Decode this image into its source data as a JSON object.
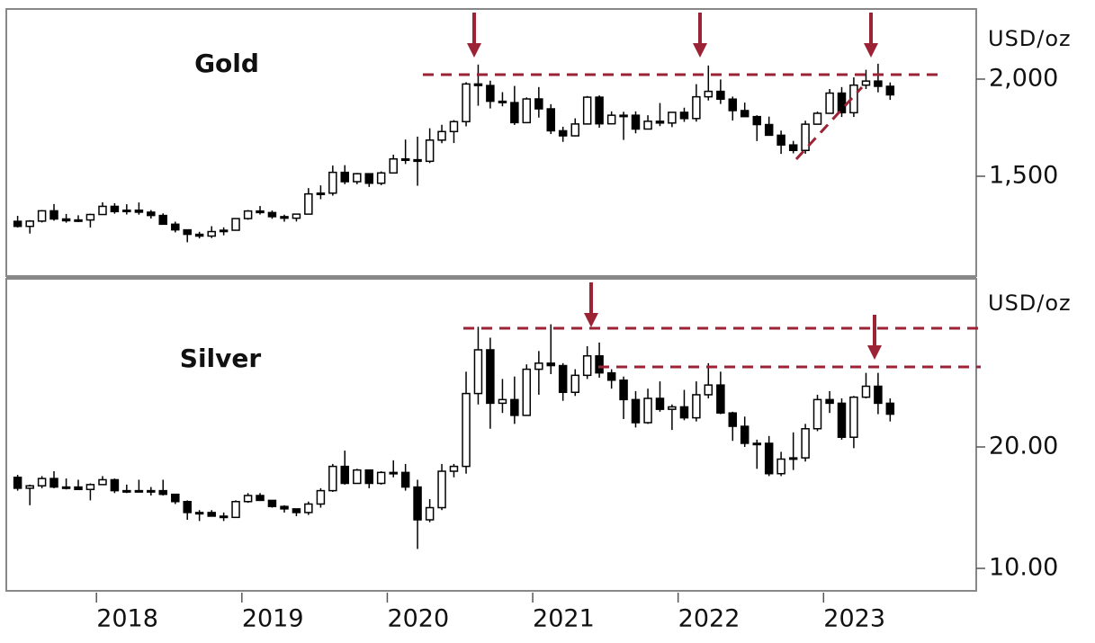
{
  "chart_data": {
    "type": "candlestick",
    "up_color": "#ffffff",
    "down_color": "#000000",
    "xlim": [
      2017.38,
      2024.05
    ],
    "xticks": [
      2018,
      2019,
      2020,
      2021,
      2022,
      2023
    ],
    "x": [
      2017.458,
      2017.542,
      2017.625,
      2017.708,
      2017.792,
      2017.875,
      2017.958,
      2018.042,
      2018.125,
      2018.208,
      2018.292,
      2018.375,
      2018.458,
      2018.542,
      2018.625,
      2018.708,
      2018.792,
      2018.875,
      2018.958,
      2019.042,
      2019.125,
      2019.208,
      2019.292,
      2019.375,
      2019.458,
      2019.542,
      2019.625,
      2019.708,
      2019.792,
      2019.875,
      2019.958,
      2020.042,
      2020.125,
      2020.208,
      2020.292,
      2020.375,
      2020.458,
      2020.542,
      2020.625,
      2020.708,
      2020.792,
      2020.875,
      2020.958,
      2021.042,
      2021.125,
      2021.208,
      2021.292,
      2021.375,
      2021.458,
      2021.542,
      2021.625,
      2021.708,
      2021.792,
      2021.875,
      2021.958,
      2022.042,
      2022.125,
      2022.208,
      2022.292,
      2022.375,
      2022.458,
      2022.542,
      2022.625,
      2022.708,
      2022.792,
      2022.875,
      2022.958,
      2023.042,
      2023.125,
      2023.208,
      2023.292,
      2023.375,
      2023.458
    ],
    "panels": [
      {
        "title": "Gold",
        "y_label": "USD/oz",
        "ylim": [
          986,
          2361
        ],
        "yticks": [
          {
            "value": 1500,
            "label": "1,500"
          },
          {
            "value": 2000,
            "label": "2,000"
          }
        ],
        "open": [
          1268,
          1242,
          1269,
          1322,
          1280,
          1271,
          1275,
          1303,
          1345,
          1318,
          1325,
          1315,
          1298,
          1253,
          1224,
          1201,
          1192,
          1215,
          1222,
          1282,
          1321,
          1313,
          1292,
          1284,
          1305,
          1409,
          1413,
          1520,
          1472,
          1513,
          1464,
          1517,
          1589,
          1585,
          1577,
          1686,
          1730,
          1781,
          1975,
          1967,
          1886,
          1879,
          1776,
          1898,
          1847,
          1734,
          1708,
          1769,
          1907,
          1770,
          1814,
          1814,
          1743,
          1783,
          1774,
          1829,
          1797,
          1909,
          1937,
          1897,
          1838,
          1807,
          1766,
          1711,
          1661,
          1633,
          1768,
          1824,
          1928,
          1827,
          1969,
          1990,
          1963
        ],
        "high": [
          1296,
          1274,
          1326,
          1357,
          1306,
          1299,
          1307,
          1366,
          1361,
          1356,
          1365,
          1326,
          1309,
          1266,
          1222,
          1214,
          1243,
          1237,
          1284,
          1326,
          1347,
          1324,
          1302,
          1306,
          1439,
          1453,
          1555,
          1557,
          1517,
          1516,
          1525,
          1611,
          1689,
          1704,
          1747,
          1765,
          1789,
          1984,
          2075,
          1992,
          1933,
          1965,
          1906,
          1959,
          1871,
          1755,
          1798,
          1913,
          1916,
          1834,
          1832,
          1834,
          1814,
          1877,
          1831,
          1853,
          1974,
          2070,
          1998,
          1910,
          1879,
          1814,
          1807,
          1735,
          1682,
          1786,
          1833,
          1949,
          1959,
          2009,
          2048,
          2079,
          1983
        ],
        "low": [
          1236,
          1205,
          1262,
          1271,
          1261,
          1264,
          1236,
          1302,
          1307,
          1303,
          1302,
          1282,
          1251,
          1211,
          1160,
          1180,
          1182,
          1196,
          1221,
          1276,
          1303,
          1281,
          1266,
          1267,
          1311,
          1382,
          1400,
          1459,
          1459,
          1445,
          1454,
          1517,
          1563,
          1451,
          1568,
          1670,
          1671,
          1757,
          1863,
          1849,
          1860,
          1764,
          1775,
          1802,
          1717,
          1677,
          1705,
          1766,
          1750,
          1767,
          1687,
          1721,
          1746,
          1758,
          1753,
          1780,
          1781,
          1890,
          1872,
          1787,
          1805,
          1681,
          1709,
          1615,
          1618,
          1616,
          1765,
          1823,
          1805,
          1805,
          1949,
          1932,
          1893
        ],
        "close": [
          1242,
          1269,
          1322,
          1280,
          1271,
          1275,
          1303,
          1345,
          1318,
          1325,
          1315,
          1298,
          1253,
          1224,
          1201,
          1192,
          1215,
          1222,
          1282,
          1321,
          1313,
          1292,
          1284,
          1305,
          1409,
          1413,
          1520,
          1472,
          1513,
          1464,
          1517,
          1589,
          1585,
          1577,
          1686,
          1730,
          1781,
          1975,
          1967,
          1886,
          1879,
          1776,
          1898,
          1847,
          1734,
          1708,
          1769,
          1907,
          1770,
          1814,
          1814,
          1743,
          1783,
          1774,
          1829,
          1797,
          1909,
          1937,
          1897,
          1838,
          1807,
          1766,
          1711,
          1661,
          1633,
          1768,
          1824,
          1928,
          1827,
          1969,
          1990,
          1963,
          1919
        ]
      },
      {
        "title": "Silver",
        "y_label": "USD/oz",
        "ylim": [
          8.15,
          33.85
        ],
        "yticks": [
          {
            "value": 10,
            "label": "10.00"
          },
          {
            "value": 20,
            "label": "20.00"
          }
        ],
        "open": [
          17.5,
          16.6,
          16.8,
          17.4,
          16.7,
          16.7,
          16.5,
          16.9,
          17.3,
          16.4,
          16.3,
          16.4,
          16.4,
          16.1,
          15.5,
          14.6,
          14.6,
          14.3,
          14.2,
          15.5,
          16.0,
          15.6,
          15.1,
          14.9,
          14.6,
          15.3,
          16.4,
          18.4,
          17.0,
          18.1,
          17.0,
          17.9,
          17.9,
          16.7,
          14.0,
          15.0,
          18.0,
          18.4,
          24.4,
          28.0,
          23.6,
          23.9,
          22.6,
          26.4,
          26.9,
          26.7,
          24.5,
          25.9,
          27.5,
          26.1,
          25.5,
          23.9,
          22.0,
          24.0,
          23.1,
          23.3,
          22.4,
          24.3,
          25.1,
          22.8,
          21.7,
          20.3,
          20.3,
          17.8,
          19.0,
          19.1,
          21.5,
          23.9,
          23.6,
          20.8,
          24.1,
          25.0,
          23.6
        ],
        "high": [
          17.7,
          16.9,
          17.6,
          18.0,
          17.4,
          17.3,
          17.0,
          17.6,
          17.4,
          16.9,
          17.3,
          16.7,
          17.3,
          16.0,
          15.6,
          14.8,
          14.8,
          14.6,
          15.6,
          16.2,
          16.2,
          15.6,
          15.2,
          14.9,
          15.5,
          16.6,
          18.6,
          19.7,
          18.2,
          18.1,
          18.0,
          18.9,
          18.6,
          17.3,
          15.7,
          18.6,
          18.6,
          26.2,
          29.9,
          29.0,
          25.6,
          25.8,
          26.8,
          27.9,
          30.1,
          26.9,
          26.4,
          28.3,
          28.6,
          26.4,
          25.8,
          24.6,
          24.8,
          25.4,
          23.5,
          24.7,
          25.4,
          26.9,
          26.2,
          22.9,
          22.5,
          20.6,
          20.9,
          19.6,
          21.2,
          21.9,
          24.3,
          24.6,
          24.0,
          24.2,
          26.1,
          26.1,
          24.0
        ],
        "low": [
          16.4,
          15.2,
          16.6,
          16.6,
          16.5,
          16.5,
          15.6,
          16.9,
          16.2,
          16.2,
          16.3,
          16.0,
          16.0,
          15.3,
          14.0,
          13.9,
          14.3,
          13.9,
          14.2,
          15.4,
          15.6,
          15.0,
          14.6,
          14.3,
          14.4,
          15.0,
          16.3,
          16.9,
          17.1,
          16.6,
          16.9,
          17.5,
          16.4,
          11.6,
          13.8,
          14.8,
          17.5,
          17.8,
          23.5,
          21.5,
          22.8,
          21.9,
          22.6,
          24.3,
          26.0,
          23.8,
          24.2,
          25.6,
          25.7,
          24.8,
          22.3,
          21.6,
          21.9,
          22.9,
          21.4,
          22.2,
          22.1,
          24.0,
          22.7,
          20.5,
          20.0,
          18.2,
          17.6,
          17.6,
          18.1,
          18.8,
          21.3,
          22.8,
          20.6,
          19.9,
          24.0,
          22.7,
          22.1
        ],
        "close": [
          16.6,
          16.8,
          17.4,
          16.7,
          16.7,
          16.5,
          16.9,
          17.3,
          16.4,
          16.3,
          16.4,
          16.4,
          16.1,
          15.5,
          14.6,
          14.6,
          14.3,
          14.2,
          15.5,
          16.0,
          15.6,
          15.1,
          14.9,
          14.6,
          15.3,
          16.4,
          18.4,
          17.0,
          18.1,
          17.0,
          17.9,
          17.9,
          16.7,
          14.0,
          15.0,
          18.0,
          18.4,
          24.4,
          28.0,
          23.6,
          23.9,
          22.6,
          26.4,
          26.9,
          26.7,
          24.5,
          25.9,
          27.5,
          26.1,
          25.5,
          23.9,
          22.0,
          24.0,
          23.1,
          23.3,
          22.4,
          24.3,
          25.1,
          22.8,
          21.7,
          20.3,
          20.3,
          17.8,
          19.0,
          19.1,
          21.5,
          23.9,
          23.6,
          20.8,
          24.1,
          25.0,
          23.6,
          22.7
        ]
      }
    ]
  }
}
